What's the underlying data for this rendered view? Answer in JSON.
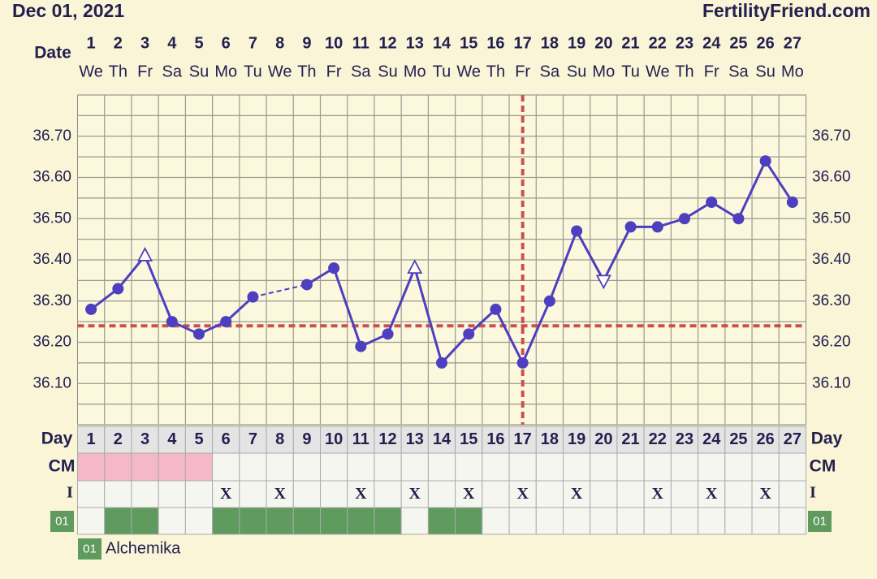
{
  "chart_data": {
    "type": "line",
    "header_date": "Dec 01, 2021",
    "site": "FertilityFriend.com",
    "date_label": "Date",
    "categories": [
      "1",
      "2",
      "3",
      "4",
      "5",
      "6",
      "7",
      "8",
      "9",
      "10",
      "11",
      "12",
      "13",
      "14",
      "15",
      "16",
      "17",
      "18",
      "19",
      "20",
      "21",
      "22",
      "23",
      "24",
      "25",
      "26",
      "27"
    ],
    "weekdays": [
      "We",
      "Th",
      "Fr",
      "Sa",
      "Su",
      "Mo",
      "Tu",
      "We",
      "Th",
      "Fr",
      "Sa",
      "Su",
      "Mo",
      "Tu",
      "We",
      "Th",
      "Fr",
      "Sa",
      "Su",
      "Mo",
      "Tu",
      "We",
      "Th",
      "Fr",
      "Sa",
      "Su",
      "Mo"
    ],
    "values": [
      36.28,
      36.33,
      36.41,
      36.25,
      36.22,
      36.25,
      36.31,
      null,
      36.34,
      36.38,
      36.19,
      36.22,
      36.38,
      36.15,
      36.22,
      36.28,
      36.15,
      36.3,
      36.47,
      36.35,
      36.48,
      36.48,
      36.5,
      36.54,
      36.5,
      36.64,
      36.54
    ],
    "markers": [
      "dot",
      "dot",
      "triangle-up",
      "dot",
      "dot",
      "dot",
      "dot",
      null,
      "dot",
      "dot",
      "dot",
      "dot",
      "triangle-up",
      "dot",
      "dot",
      "dot",
      "dot",
      "dot",
      "dot",
      "triangle-down",
      "dot",
      "dot",
      "dot",
      "dot",
      "dot",
      "dot",
      "dot"
    ],
    "color": "#4d3fbf",
    "ylim": [
      36.0,
      36.8
    ],
    "yticks": [
      {
        "value": 36.1,
        "label": "36.10"
      },
      {
        "value": 36.2,
        "label": "36.20"
      },
      {
        "value": 36.3,
        "label": "36.30"
      },
      {
        "value": 36.4,
        "label": "36.40"
      },
      {
        "value": 36.5,
        "label": "36.50"
      },
      {
        "value": 36.6,
        "label": "36.60"
      },
      {
        "value": 36.7,
        "label": "36.70"
      }
    ],
    "grid_lines": [
      36.0,
      36.05,
      36.1,
      36.15,
      36.2,
      36.25,
      36.3,
      36.35,
      36.4,
      36.45,
      36.5,
      36.55,
      36.6,
      36.65,
      36.7,
      36.75,
      36.8
    ],
    "coverline": 36.24,
    "ovulation_day": 17,
    "marker_color": "#cc4f4f",
    "day_label": "Day",
    "cm": {
      "label": "CM",
      "color": "#f5b8c8",
      "cells": [
        true,
        true,
        true,
        true,
        true,
        false,
        false,
        false,
        false,
        false,
        false,
        false,
        false,
        false,
        false,
        false,
        false,
        false,
        false,
        false,
        false,
        false,
        false,
        false,
        false,
        false,
        false
      ]
    },
    "intercourse": {
      "label": "I",
      "cells": [
        null,
        null,
        null,
        null,
        null,
        "X",
        null,
        "X",
        null,
        null,
        "X",
        null,
        "X",
        null,
        "X",
        null,
        "X",
        null,
        "X",
        null,
        null,
        "X",
        null,
        "X",
        null,
        "X",
        null
      ]
    },
    "custom": {
      "label": "01",
      "legend": "Alchemika",
      "color": "#5f9a5f",
      "cells": [
        false,
        true,
        true,
        false,
        false,
        true,
        true,
        true,
        true,
        true,
        true,
        true,
        false,
        true,
        true,
        false,
        false,
        false,
        false,
        false,
        false,
        false,
        false,
        false,
        false,
        false,
        false
      ]
    }
  }
}
